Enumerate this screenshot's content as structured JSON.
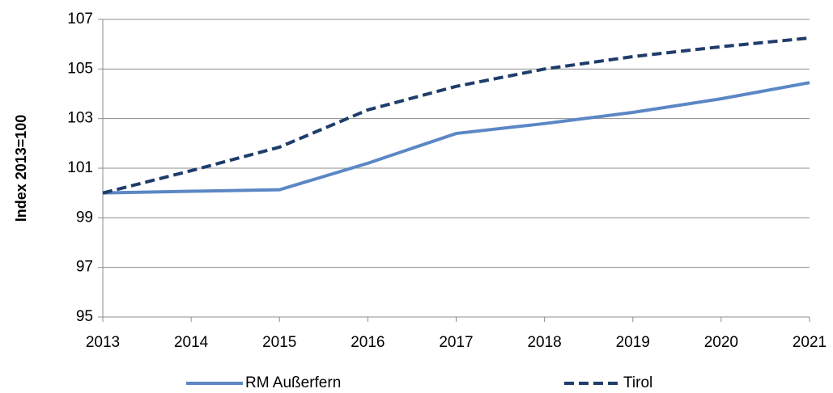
{
  "chart_data": {
    "type": "line",
    "y_label": "Index 2013=100",
    "x": [
      2013,
      2014,
      2015,
      2016,
      2017,
      2018,
      2019,
      2020,
      2021
    ],
    "xlim": [
      2013,
      2021
    ],
    "xticks": [
      2013,
      2014,
      2015,
      2016,
      2017,
      2018,
      2019,
      2020,
      2021
    ],
    "ylim": [
      95,
      107
    ],
    "yticks": [
      95,
      97,
      99,
      101,
      103,
      105,
      107
    ],
    "grid": true,
    "legend": "bottom",
    "series": [
      {
        "name": "RM Außerfern",
        "color": "#5b87c5",
        "dash": false,
        "values": [
          100,
          100.07,
          100.13,
          101.2,
          102.4,
          102.8,
          103.25,
          103.8,
          104.45
        ]
      },
      {
        "name": "Tirol",
        "color": "#1f3d6b",
        "dash": true,
        "values": [
          100,
          100.9,
          101.85,
          103.35,
          104.3,
          105.0,
          105.5,
          105.9,
          106.25
        ]
      }
    ]
  }
}
